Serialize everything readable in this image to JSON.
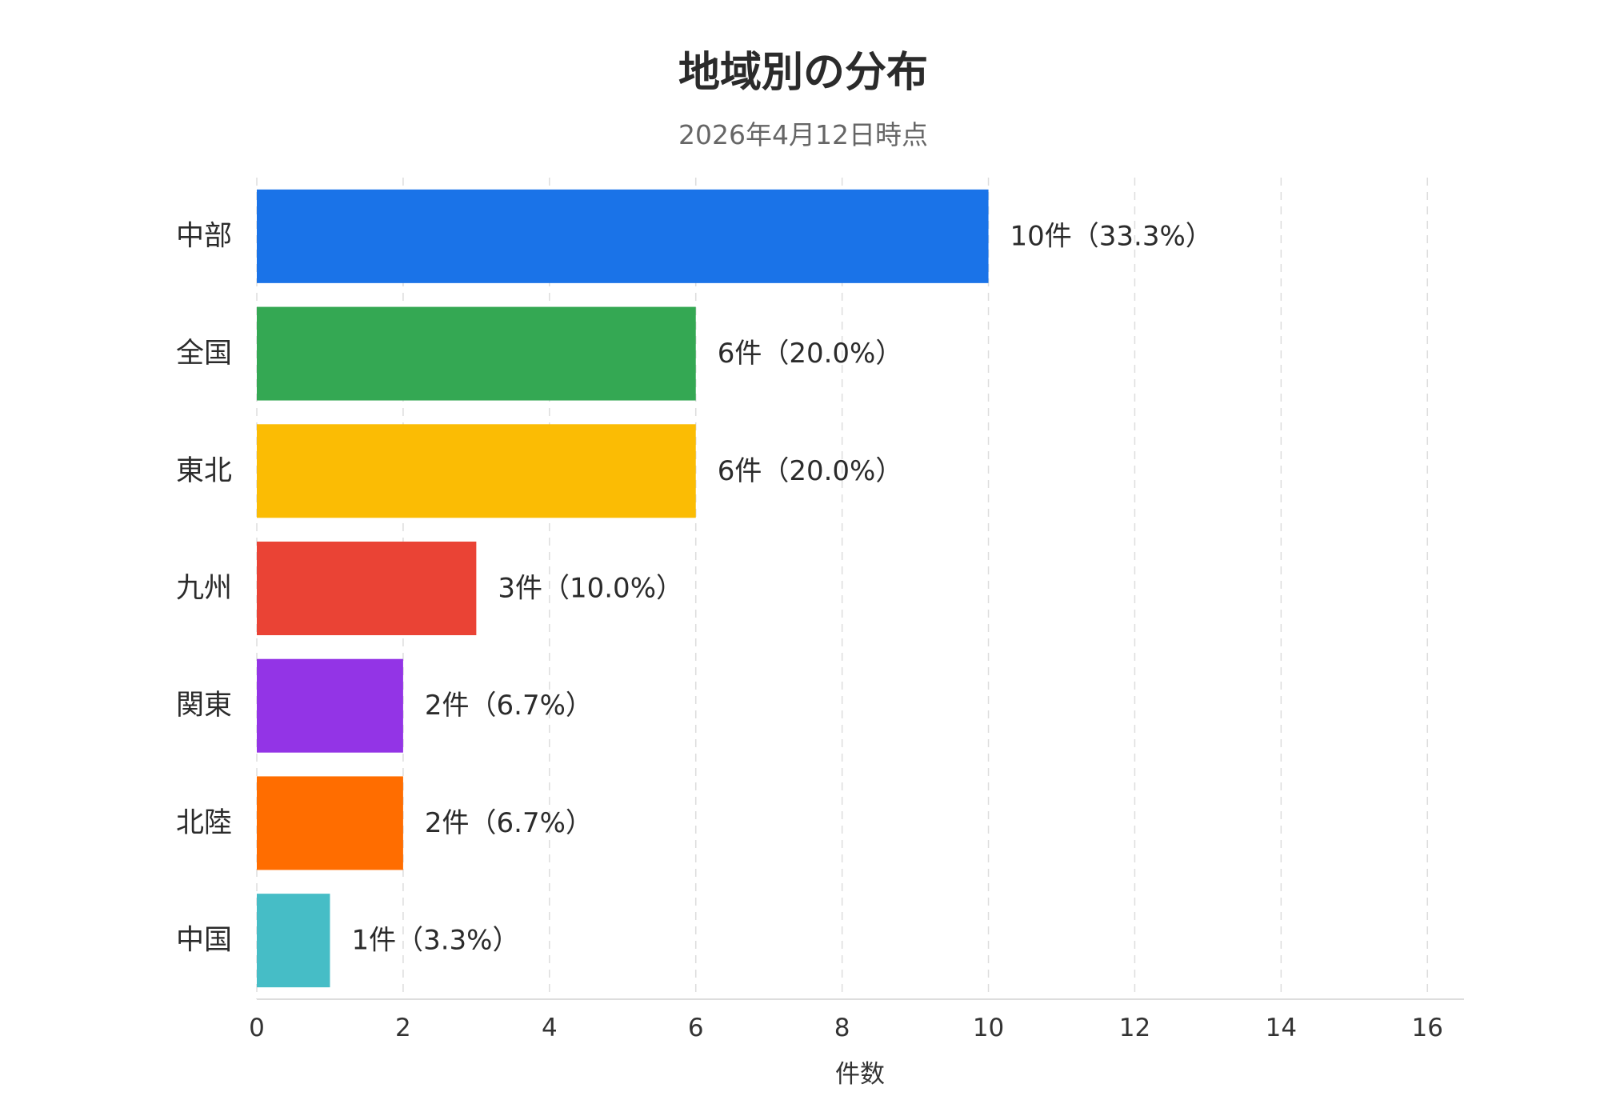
{
  "chart_data": {
    "type": "bar",
    "orientation": "horizontal",
    "title": "地域別の分布",
    "subtitle": "2026年4月12日時点",
    "xlabel": "件数",
    "ylabel": "",
    "xlim": [
      0,
      16.5
    ],
    "xticks": [
      0,
      2,
      4,
      6,
      8,
      10,
      12,
      14,
      16
    ],
    "grid": true,
    "legend": "none",
    "categories": [
      "中部",
      "全国",
      "東北",
      "九州",
      "関東",
      "北陸",
      "中国"
    ],
    "values": [
      10,
      6,
      6,
      3,
      2,
      2,
      1
    ],
    "data_labels": [
      "10件（33.3%）",
      "6件（20.0%）",
      "6件（20.0%）",
      "3件（10.0%）",
      "2件（6.7%）",
      "2件（6.7%）",
      "1件（3.3%）"
    ],
    "colors": [
      "#1a73e8",
      "#34a853",
      "#fbbc04",
      "#ea4335",
      "#9334e6",
      "#ff6d00",
      "#46bdc6"
    ]
  }
}
